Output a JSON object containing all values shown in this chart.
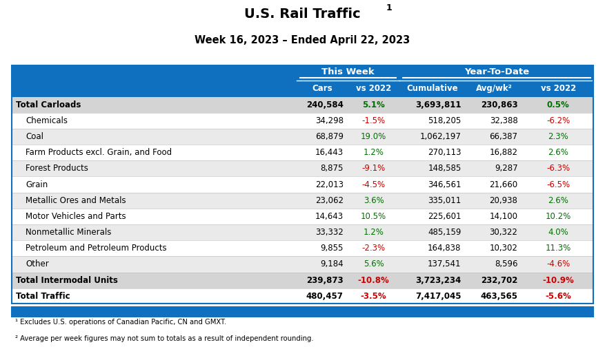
{
  "title": "U.S. Rail Traffic",
  "subtitle": "Week 16, 2023 – Ended April 22, 2023",
  "header1": "This Week",
  "header2": "Year-To-Date",
  "rows": [
    {
      "label": "Total Carloads",
      "bold": true,
      "indent": false,
      "cars": "240,584",
      "vs2022_week": "5.1%",
      "vs2022_week_color": "green",
      "cumulative": "3,693,811",
      "avgwk": "230,863",
      "vs2022_ytd": "0.5%",
      "vs2022_ytd_color": "green"
    },
    {
      "label": "Chemicals",
      "bold": false,
      "indent": true,
      "cars": "34,298",
      "vs2022_week": "-1.5%",
      "vs2022_week_color": "red",
      "cumulative": "518,205",
      "avgwk": "32,388",
      "vs2022_ytd": "-6.2%",
      "vs2022_ytd_color": "red"
    },
    {
      "label": "Coal",
      "bold": false,
      "indent": true,
      "cars": "68,879",
      "vs2022_week": "19.0%",
      "vs2022_week_color": "green",
      "cumulative": "1,062,197",
      "avgwk": "66,387",
      "vs2022_ytd": "2.3%",
      "vs2022_ytd_color": "green"
    },
    {
      "label": "Farm Products excl. Grain, and Food",
      "bold": false,
      "indent": true,
      "cars": "16,443",
      "vs2022_week": "1.2%",
      "vs2022_week_color": "green",
      "cumulative": "270,113",
      "avgwk": "16,882",
      "vs2022_ytd": "2.6%",
      "vs2022_ytd_color": "green"
    },
    {
      "label": "Forest Products",
      "bold": false,
      "indent": true,
      "cars": "8,875",
      "vs2022_week": "-9.1%",
      "vs2022_week_color": "red",
      "cumulative": "148,585",
      "avgwk": "9,287",
      "vs2022_ytd": "-6.3%",
      "vs2022_ytd_color": "red"
    },
    {
      "label": "Grain",
      "bold": false,
      "indent": true,
      "cars": "22,013",
      "vs2022_week": "-4.5%",
      "vs2022_week_color": "red",
      "cumulative": "346,561",
      "avgwk": "21,660",
      "vs2022_ytd": "-6.5%",
      "vs2022_ytd_color": "red"
    },
    {
      "label": "Metallic Ores and Metals",
      "bold": false,
      "indent": true,
      "cars": "23,062",
      "vs2022_week": "3.6%",
      "vs2022_week_color": "green",
      "cumulative": "335,011",
      "avgwk": "20,938",
      "vs2022_ytd": "2.6%",
      "vs2022_ytd_color": "green"
    },
    {
      "label": "Motor Vehicles and Parts",
      "bold": false,
      "indent": true,
      "cars": "14,643",
      "vs2022_week": "10.5%",
      "vs2022_week_color": "green",
      "cumulative": "225,601",
      "avgwk": "14,100",
      "vs2022_ytd": "10.2%",
      "vs2022_ytd_color": "green"
    },
    {
      "label": "Nonmetallic Minerals",
      "bold": false,
      "indent": true,
      "cars": "33,332",
      "vs2022_week": "1.2%",
      "vs2022_week_color": "green",
      "cumulative": "485,159",
      "avgwk": "30,322",
      "vs2022_ytd": "4.0%",
      "vs2022_ytd_color": "green"
    },
    {
      "label": "Petroleum and Petroleum Products",
      "bold": false,
      "indent": true,
      "cars": "9,855",
      "vs2022_week": "-2.3%",
      "vs2022_week_color": "red",
      "cumulative": "164,838",
      "avgwk": "10,302",
      "vs2022_ytd": "11.3%",
      "vs2022_ytd_color": "green"
    },
    {
      "label": "Other",
      "bold": false,
      "indent": true,
      "cars": "9,184",
      "vs2022_week": "5.6%",
      "vs2022_week_color": "green",
      "cumulative": "137,541",
      "avgwk": "8,596",
      "vs2022_ytd": "-4.6%",
      "vs2022_ytd_color": "red"
    },
    {
      "label": "Total Intermodal Units",
      "bold": true,
      "indent": false,
      "cars": "239,873",
      "vs2022_week": "-10.8%",
      "vs2022_week_color": "red",
      "cumulative": "3,723,234",
      "avgwk": "232,702",
      "vs2022_ytd": "-10.9%",
      "vs2022_ytd_color": "red"
    },
    {
      "label": "Total Traffic",
      "bold": true,
      "indent": false,
      "cars": "480,457",
      "vs2022_week": "-3.5%",
      "vs2022_week_color": "red",
      "cumulative": "7,417,045",
      "avgwk": "463,565",
      "vs2022_ytd": "-5.6%",
      "vs2022_ytd_color": "red"
    }
  ],
  "footnote1": "¹ Excludes U.S. operations of Canadian Pacific, CN and GMXT.",
  "footnote2": "² Average per week figures may not sum to totals as a result of independent rounding.",
  "header_bg": "#1070C0",
  "header_text": "#FFFFFF",
  "row_bg_even": "#EAEAEA",
  "row_bg_odd": "#FFFFFF",
  "row_bg_bold": "#D4D4D4",
  "green_color": "#007000",
  "red_color": "#CC0000"
}
